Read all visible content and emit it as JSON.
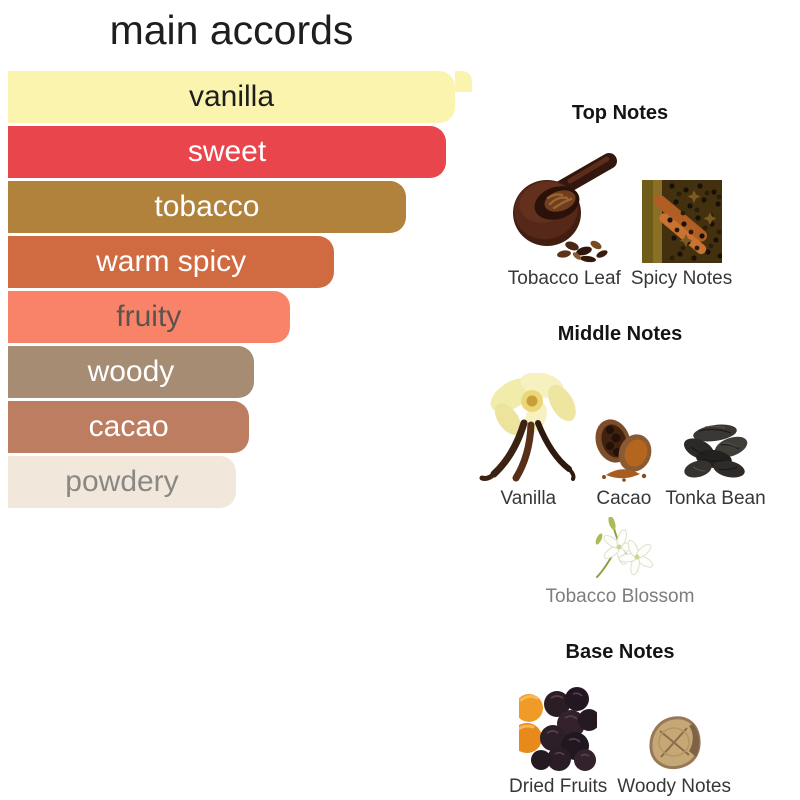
{
  "page": {
    "background": "#ffffff"
  },
  "chart_data": {
    "type": "bar",
    "orientation": "horizontal",
    "title": "main accords",
    "categories": [
      "vanilla",
      "sweet",
      "tobacco",
      "warm spicy",
      "fruity",
      "woody",
      "cacao",
      "powdery"
    ],
    "values": [
      100,
      98,
      89,
      73,
      63,
      55,
      54,
      51
    ],
    "value_unit": "relative accord strength, % of widest bar",
    "labels_inside_bars": true,
    "accords": [
      {
        "name": "vanilla",
        "width_pct": 100,
        "color": "#faf4ae",
        "text_color": "#1e1e1e",
        "overflow_tab": true
      },
      {
        "name": "sweet",
        "width_pct": 98,
        "color": "#e9454d",
        "text_color": "#ffffff"
      },
      {
        "name": "tobacco",
        "width_pct": 89,
        "color": "#b0823c",
        "text_color": "#ffffff"
      },
      {
        "name": "warm spicy",
        "width_pct": 73,
        "color": "#d06b41",
        "text_color": "#ffffff"
      },
      {
        "name": "fruity",
        "width_pct": 63,
        "color": "#f98369",
        "text_color": "#5b5350"
      },
      {
        "name": "woody",
        "width_pct": 55,
        "color": "#a78c74",
        "text_color": "#ffffff"
      },
      {
        "name": "cacao",
        "width_pct": 54,
        "color": "#bd7d61",
        "text_color": "#ffffff"
      },
      {
        "name": "powdery",
        "width_pct": 51,
        "color": "#f1e7db",
        "text_color": "#8a8884"
      }
    ]
  },
  "notes": {
    "sections": [
      {
        "heading": "Top Notes",
        "rows": [
          [
            {
              "name": "Tobacco Leaf",
              "icon": "tobacco-leaf"
            },
            {
              "name": "Spicy Notes",
              "icon": "spicy-notes"
            }
          ]
        ]
      },
      {
        "heading": "Middle Notes",
        "rows": [
          [
            {
              "name": "Vanilla",
              "icon": "vanilla"
            },
            {
              "name": "Cacao",
              "icon": "cacao"
            },
            {
              "name": "Tonka Bean",
              "icon": "tonka-bean"
            }
          ],
          [
            {
              "name": "Tobacco Blossom",
              "icon": "tobacco-blossom",
              "muted": true
            }
          ]
        ]
      },
      {
        "heading": "Base Notes",
        "rows": [
          [
            {
              "name": "Dried Fruits",
              "icon": "dried-fruits"
            },
            {
              "name": "Woody Notes",
              "icon": "woody-notes"
            }
          ]
        ]
      }
    ]
  }
}
